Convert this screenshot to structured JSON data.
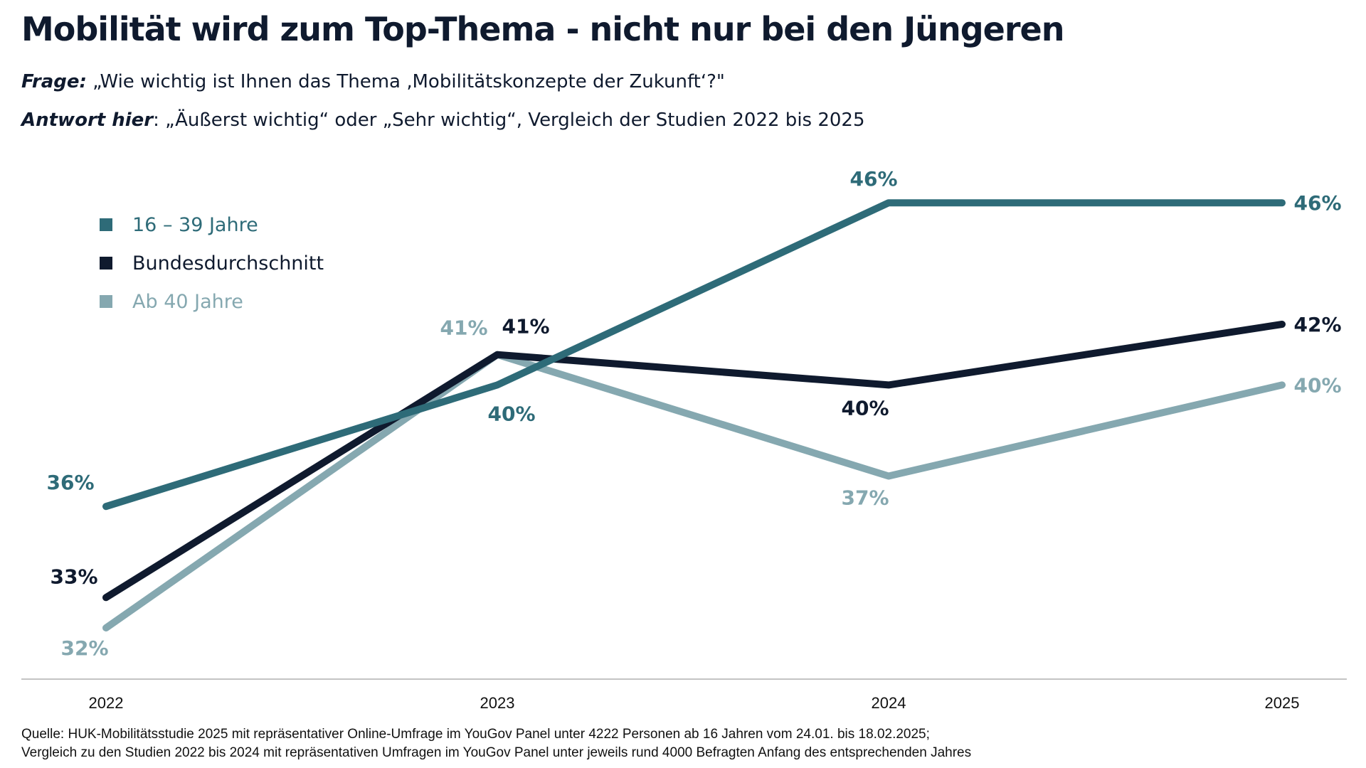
{
  "header": {
    "title": "Mobilität wird zum Top-Thema - nicht nur bei den Jüngeren",
    "question_lead": "Frage:",
    "question_text": " „Wie wichtig ist Ihnen das Thema ‚Mobilitätskonzepte der Zukunft‘?\"",
    "answer_lead": "Antwort hier",
    "answer_text": ": „Äußerst wichtig“ oder „Sehr wichtig“, Vergleich der Studien 2022 bis 2025"
  },
  "chart_data": {
    "type": "line",
    "categories": [
      "2022",
      "2023",
      "2024",
      "2025"
    ],
    "series": [
      {
        "name": "16 – 39 Jahre",
        "color": "#2e6b78",
        "values": [
          36,
          40,
          46,
          46
        ],
        "labels": [
          "36%",
          "40%",
          "46%",
          "46%"
        ]
      },
      {
        "name": "Bundesdurchschnitt",
        "color": "#0f1a2e",
        "values": [
          33,
          41,
          40,
          42
        ],
        "labels": [
          "33%",
          "41%",
          "40%",
          "42%"
        ]
      },
      {
        "name": "Ab 40 Jahre",
        "color": "#85a8b0",
        "values": [
          32,
          41,
          37,
          40
        ],
        "labels": [
          "32%",
          "41%",
          "37%",
          "40%"
        ]
      }
    ],
    "legend_position": "top-left",
    "grid": false
  },
  "footer": {
    "source_line1": "Quelle: HUK-Mobilitätsstudie 2025 mit repräsentativer Online-Umfrage im YouGov Panel unter 4222 Personen ab 16 Jahren vom 24.01. bis 18.02.2025;",
    "source_line2": "Vergleich zu den Studien 2022 bis 2024 mit repräsentativen Umfragen im YouGov Panel unter jeweils rund 4000 Befragten Anfang des entsprechenden Jahres"
  }
}
